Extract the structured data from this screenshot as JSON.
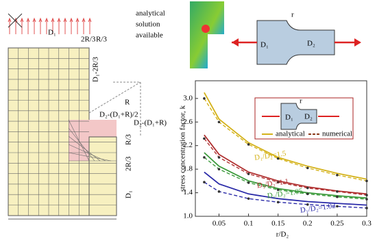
{
  "mesh": {
    "labels": [
      "D₁",
      "2R/3",
      "R/3",
      "D₁-2R/3",
      "R",
      "D₂-(D₁+R)/2",
      "D₂-(D₁+R)",
      "R/3",
      "2R/3",
      "D₁"
    ]
  },
  "note": [
    "analytical",
    "solution",
    "available"
  ],
  "shaft": {
    "r": "r",
    "d1": "D₁",
    "d2": "D₂"
  },
  "chart_data": {
    "type": "line",
    "xlabel": "r/D₂",
    "ylabel": "stress concentration factor, k",
    "x": [
      0.025,
      0.05,
      0.1,
      0.15,
      0.2,
      0.25,
      0.3
    ],
    "xlim": [
      0.01,
      0.3
    ],
    "ylim": [
      1,
      3.3
    ],
    "xticks": [
      0.05,
      0.1,
      0.15,
      0.2,
      0.25,
      0.3
    ],
    "yticks": [
      {
        "value": 1,
        "label": "1.0"
      },
      1.4,
      1.8,
      2.2,
      2.6,
      {
        "value": 3,
        "label": "3.0"
      }
    ],
    "legend": [
      {
        "name": "analytical",
        "color": "#d4b21a"
      },
      {
        "name": "numerical",
        "color": "#8a3a1a"
      }
    ],
    "inset": {
      "r": "r",
      "d1": "D₁",
      "d2": "D₂"
    },
    "curves": [
      {
        "label": "D₁/D₂=1.5",
        "color": "#d4b21a",
        "analytical": [
          3.1,
          2.65,
          2.25,
          2.0,
          1.85,
          1.73,
          1.63
        ],
        "numerical": [
          3.0,
          2.6,
          2.22,
          1.98,
          1.82,
          1.7,
          1.6
        ]
      },
      {
        "label": "D₁/D₂=1.1",
        "color": "#b03030",
        "analytical": [
          2.38,
          2.05,
          1.75,
          1.6,
          1.5,
          1.43,
          1.38
        ],
        "numerical": [
          2.32,
          2.0,
          1.72,
          1.58,
          1.48,
          1.42,
          1.36
        ]
      },
      {
        "label": "D₁/D₂=1.05",
        "color": "#3a9a3a",
        "analytical": [
          2.08,
          1.85,
          1.6,
          1.47,
          1.4,
          1.35,
          1.31
        ],
        "numerical": [
          2.0,
          1.8,
          1.57,
          1.45,
          1.38,
          1.33,
          1.29
        ]
      },
      {
        "label": "D₁/D₂=1.02",
        "color": "#2a2aa8",
        "analytical": [
          1.75,
          1.55,
          1.38,
          1.3,
          1.25,
          1.22,
          1.19
        ],
        "numerical": [
          1.58,
          1.42,
          1.3,
          1.24,
          1.2,
          1.17,
          1.14
        ]
      }
    ]
  }
}
